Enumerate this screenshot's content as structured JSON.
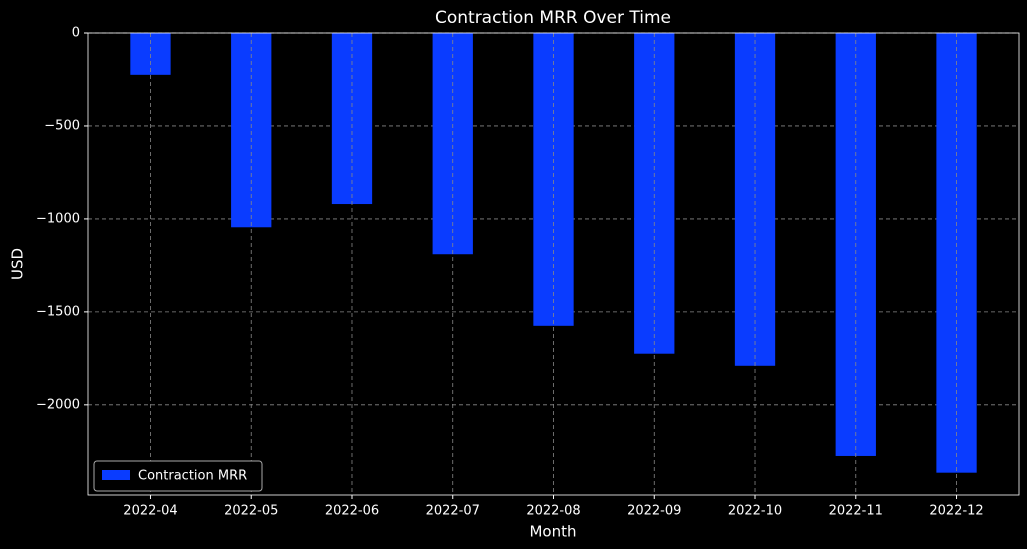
{
  "chart_data": {
    "type": "bar",
    "title": "Contraction MRR Over Time",
    "x_label": "Month",
    "y_label": "USD",
    "categories": [
      "2022-04",
      "2022-05",
      "2022-06",
      "2022-07",
      "2022-08",
      "2022-09",
      "2022-10",
      "2022-11",
      "2022-12"
    ],
    "series": [
      {
        "name": "Contraction MRR",
        "color": "#0a3cff",
        "values": [
          -225,
          -1045,
          -920,
          -1190,
          -1575,
          -1725,
          -1790,
          -2275,
          -2365
        ]
      }
    ],
    "ylim": [
      -2485,
      0
    ],
    "yticks": [
      {
        "value": -2000,
        "label": "−2000"
      },
      {
        "value": -1500,
        "label": "−1500"
      },
      {
        "value": -1000,
        "label": "−1000"
      },
      {
        "value": -500,
        "label": "−500"
      },
      0
    ],
    "grid": true,
    "legend": "lower left"
  }
}
